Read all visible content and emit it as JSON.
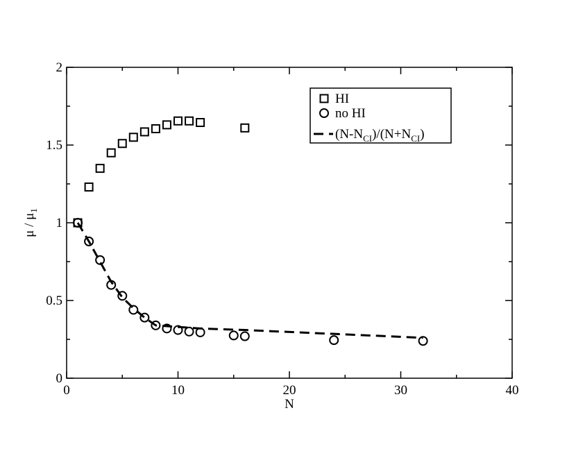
{
  "chart_data": {
    "type": "scatter",
    "xlabel": "N",
    "ylabel": [
      "μ / μ",
      "1"
    ],
    "xlim": [
      0,
      40
    ],
    "ylim": [
      0,
      2
    ],
    "xticks": [
      0,
      10,
      20,
      30,
      40
    ],
    "yticks": [
      0,
      0.5,
      1,
      1.5,
      2
    ],
    "legend": "upper right",
    "series": [
      {
        "name": [
          "HI"
        ],
        "color": "#000000",
        "marker": "square",
        "x": [
          1,
          2,
          3,
          4,
          5,
          6,
          7,
          8,
          9,
          10,
          11,
          12,
          16
        ],
        "values": [
          1.0,
          1.23,
          1.35,
          1.45,
          1.51,
          1.55,
          1.585,
          1.605,
          1.63,
          1.655,
          1.655,
          1.645,
          1.61
        ]
      },
      {
        "name": [
          "no HI"
        ],
        "color": "#000000",
        "marker": "circle",
        "x": [
          1,
          2,
          3,
          4,
          5,
          6,
          7,
          8,
          9,
          10,
          11,
          12,
          15,
          16,
          24,
          32
        ],
        "values": [
          1.0,
          0.88,
          0.76,
          0.6,
          0.53,
          0.44,
          0.39,
          0.34,
          0.32,
          0.31,
          0.3,
          0.295,
          0.275,
          0.27,
          0.245,
          0.24
        ]
      },
      {
        "name": [
          "(N-N",
          "CI",
          ")/(N+N",
          "CI",
          ")"
        ],
        "color": "#000000",
        "line": "dashed",
        "x": [
          1,
          2,
          3,
          4,
          5,
          6,
          7,
          8,
          10,
          12,
          16,
          24,
          32
        ],
        "values": [
          1.0,
          0.88,
          0.75,
          0.62,
          0.52,
          0.45,
          0.39,
          0.34,
          0.33,
          0.32,
          0.31,
          0.285,
          0.26
        ]
      }
    ]
  }
}
